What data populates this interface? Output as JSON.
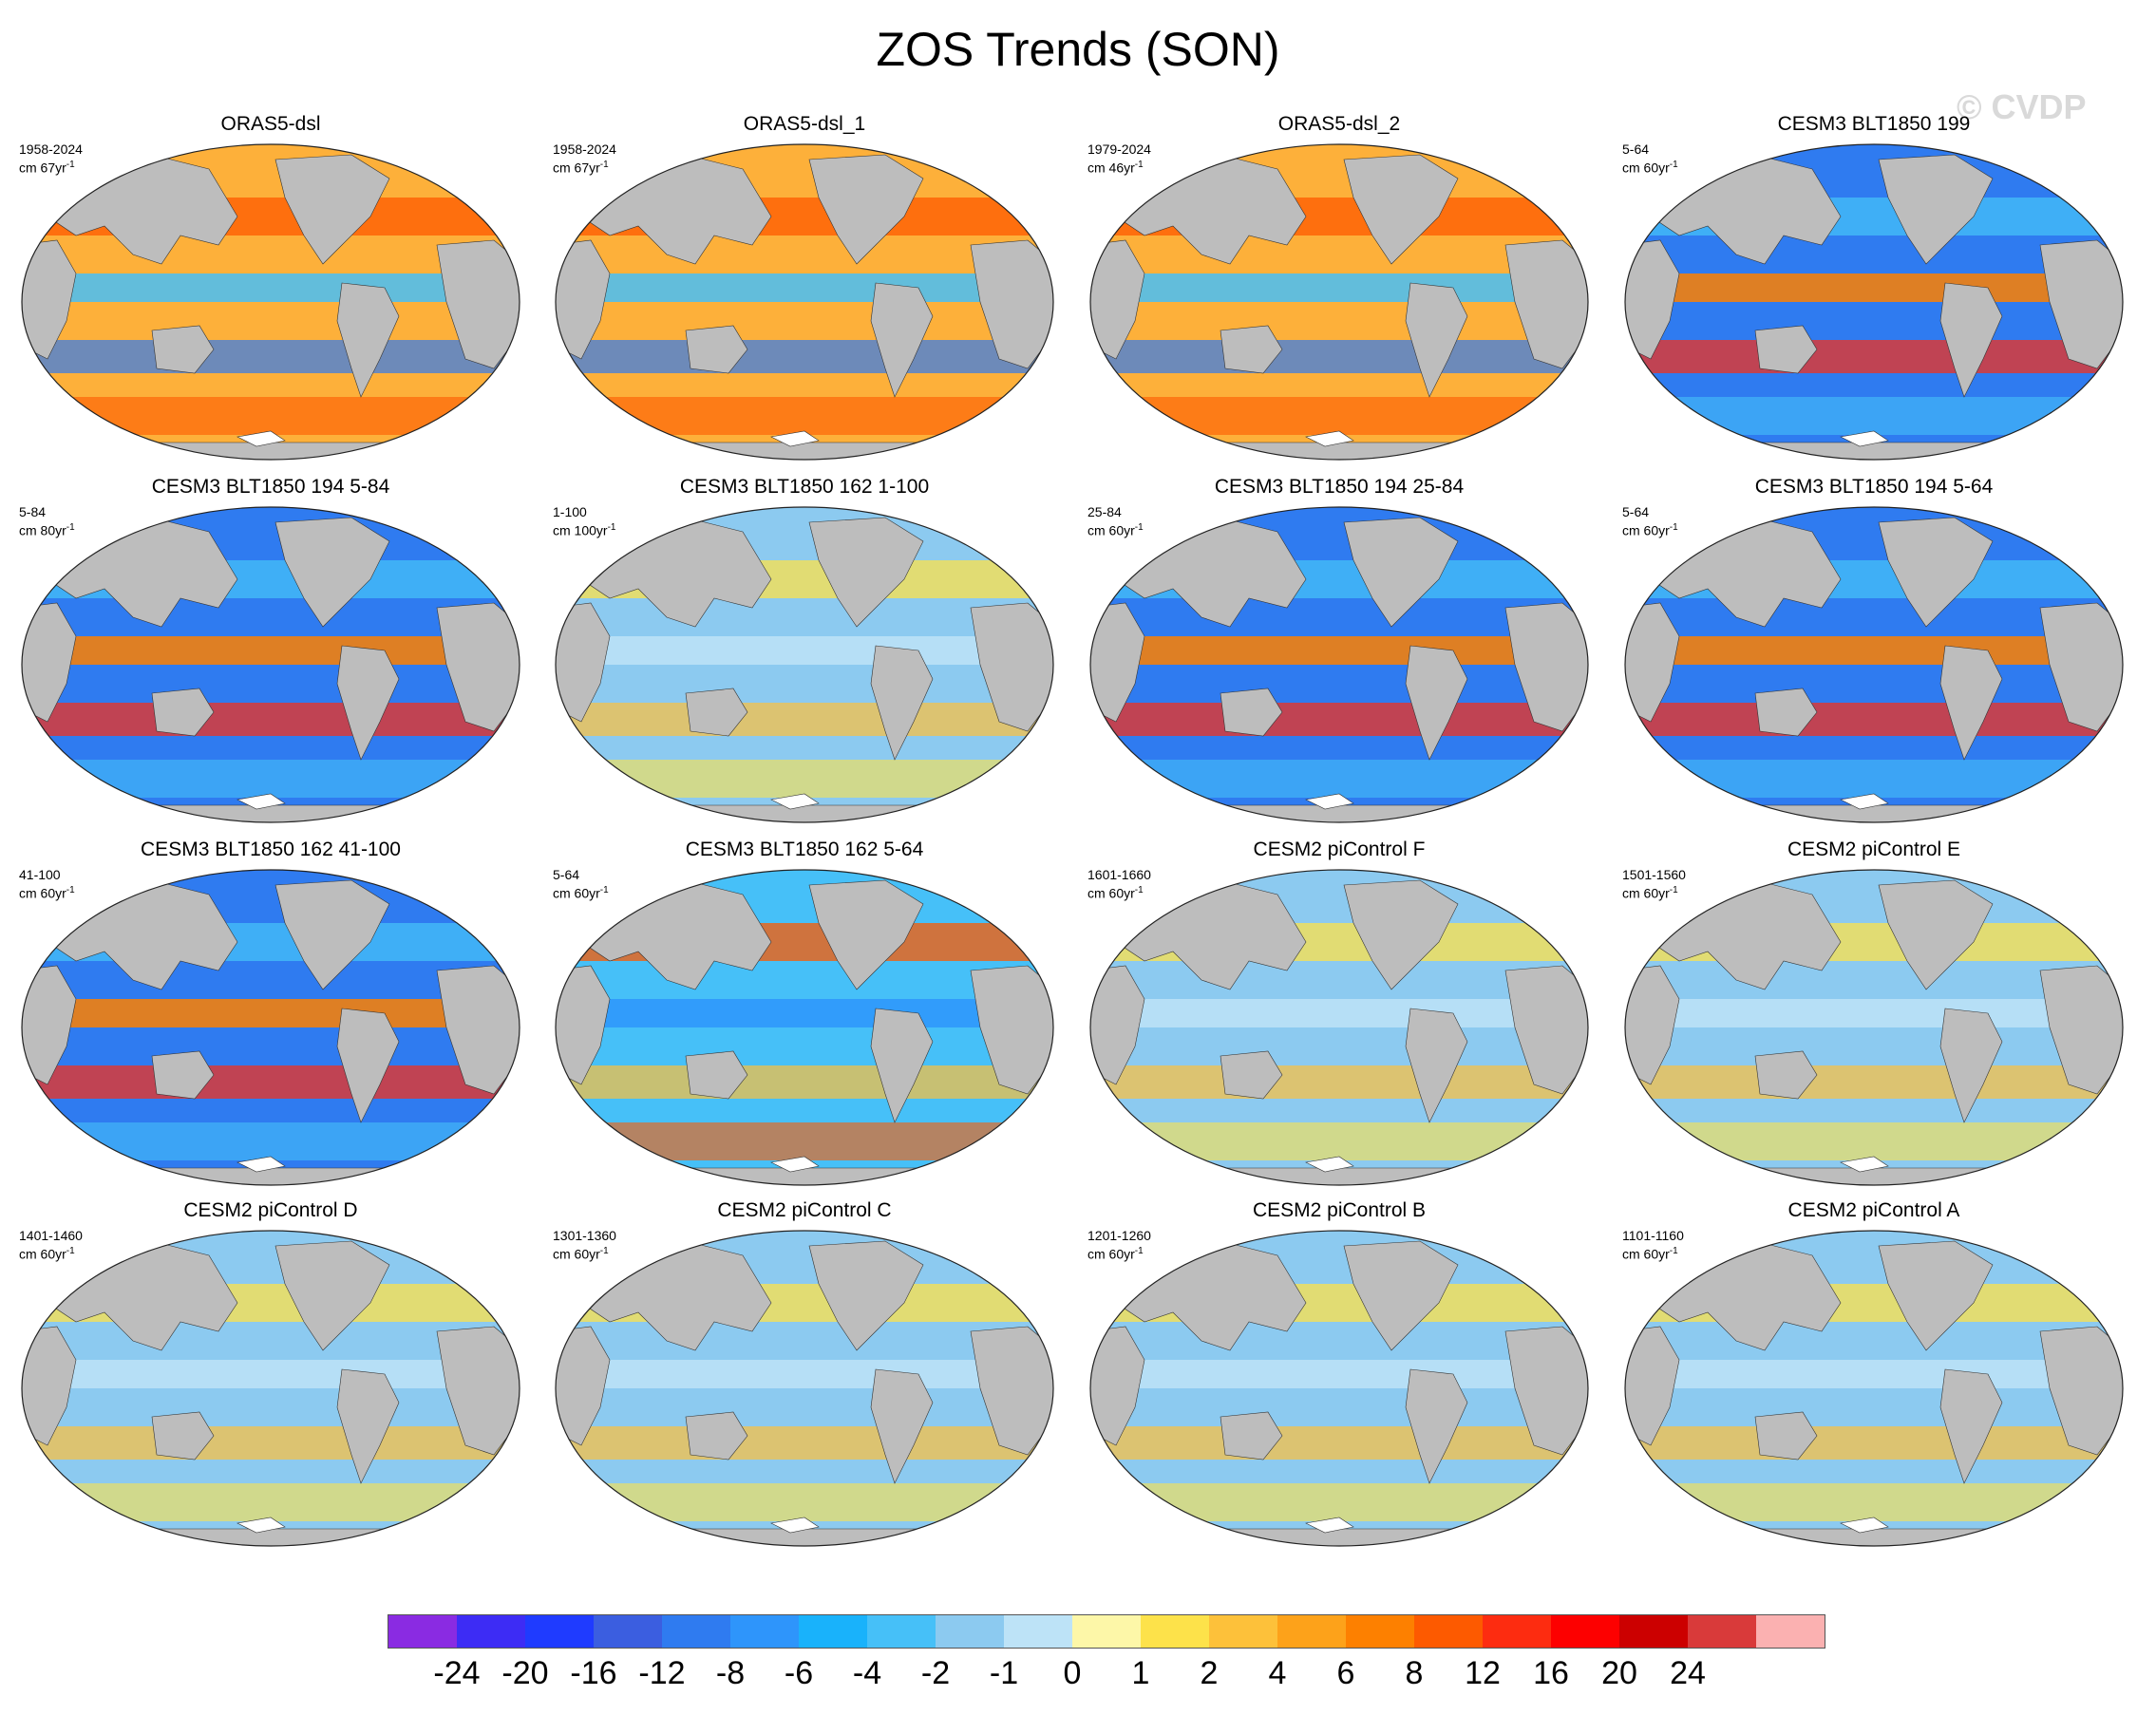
{
  "title": "ZOS Trends (SON)",
  "copyright": "© CVDP",
  "panels": [
    {
      "title": "ORAS5-dsl",
      "years": "1958-2024",
      "units": "cm 67yr",
      "units_exp": "-1",
      "style": "warm"
    },
    {
      "title": "ORAS5-dsl_1",
      "years": "1958-2024",
      "units": "cm 67yr",
      "units_exp": "-1",
      "style": "warm"
    },
    {
      "title": "ORAS5-dsl_2",
      "years": "1979-2024",
      "units": "cm 46yr",
      "units_exp": "-1",
      "style": "warm"
    },
    {
      "title": "CESM3 BLT1850 199",
      "years": "5-64",
      "units": "cm 60yr",
      "units_exp": "-1",
      "style": "cool"
    },
    {
      "title": "CESM3 BLT1850 194 5-84",
      "years": "5-84",
      "units": "cm 80yr",
      "units_exp": "-1",
      "style": "cool"
    },
    {
      "title": "CESM3 BLT1850 162 1-100",
      "years": "1-100",
      "units": "cm 100yr",
      "units_exp": "-1",
      "style": "pale"
    },
    {
      "title": "CESM3 BLT1850 194 25-84",
      "years": "25-84",
      "units": "cm 60yr",
      "units_exp": "-1",
      "style": "cool"
    },
    {
      "title": "CESM3 BLT1850 194 5-64",
      "years": "5-64",
      "units": "cm 60yr",
      "units_exp": "-1",
      "style": "cool"
    },
    {
      "title": "CESM3 BLT1850 162 41-100",
      "years": "41-100",
      "units": "cm 60yr",
      "units_exp": "-1",
      "style": "cool"
    },
    {
      "title": "CESM3 BLT1850 162 5-64",
      "years": "5-64",
      "units": "cm 60yr",
      "units_exp": "-1",
      "style": "mixed"
    },
    {
      "title": "CESM2 piControl F",
      "years": "1601-1660",
      "units": "cm 60yr",
      "units_exp": "-1",
      "style": "pale"
    },
    {
      "title": "CESM2 piControl E",
      "years": "1501-1560",
      "units": "cm 60yr",
      "units_exp": "-1",
      "style": "pale"
    },
    {
      "title": "CESM2 piControl D",
      "years": "1401-1460",
      "units": "cm 60yr",
      "units_exp": "-1",
      "style": "pale"
    },
    {
      "title": "CESM2 piControl C",
      "years": "1301-1360",
      "units": "cm 60yr",
      "units_exp": "-1",
      "style": "pale"
    },
    {
      "title": "CESM2 piControl B",
      "years": "1201-1260",
      "units": "cm 60yr",
      "units_exp": "-1",
      "style": "pale"
    },
    {
      "title": "CESM2 piControl A",
      "years": "1101-1160",
      "units": "cm 60yr",
      "units_exp": "-1",
      "style": "pale"
    }
  ],
  "colorbar": {
    "colors": [
      "#8a2be2",
      "#3d2cf5",
      "#1f3bff",
      "#3b5ee0",
      "#2f7bf0",
      "#2e95fb",
      "#19b2fb",
      "#46c0f8",
      "#8ccaf0",
      "#bde3f7",
      "#fdf7a8",
      "#fde24a",
      "#fdc13a",
      "#fda21a",
      "#fd8000",
      "#fd5a00",
      "#fd2c10",
      "#fd0000",
      "#cc0000",
      "#d93a3a",
      "#fbb1b1"
    ],
    "labels": [
      "-24",
      "-20",
      "-16",
      "-12",
      "-8",
      "-6",
      "-4",
      "-2",
      "-1",
      "0",
      "1",
      "2",
      "4",
      "6",
      "8",
      "12",
      "16",
      "20",
      "24"
    ]
  }
}
